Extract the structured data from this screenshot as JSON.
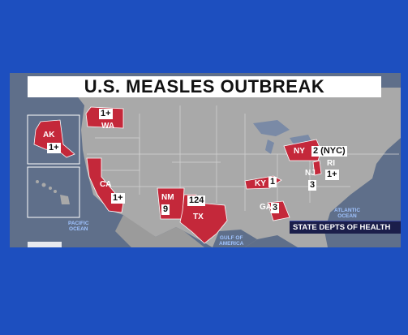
{
  "title": "U.S. MEASLES OUTBREAK",
  "source": "STATE DEPTS OF HEALTH",
  "colors": {
    "background": "#1d4fbf",
    "ocean": "#5f6f8a",
    "land": "#a9a9a9",
    "affected_state": "#c4283a",
    "label_box": "#ffffff",
    "source_bar": "#1b1e4a"
  },
  "states": [
    {
      "abbr": "AK",
      "count": "1+"
    },
    {
      "abbr": "WA",
      "count": "1+"
    },
    {
      "abbr": "CA",
      "count": "1+"
    },
    {
      "abbr": "NM",
      "count": "9"
    },
    {
      "abbr": "TX",
      "count": "124"
    },
    {
      "abbr": "KY",
      "count": "1"
    },
    {
      "abbr": "GA",
      "count": "3"
    },
    {
      "abbr": "NY",
      "count": "2 (NYC)"
    },
    {
      "abbr": "NJ",
      "count": "3"
    },
    {
      "abbr": "RI",
      "count": "1+"
    }
  ],
  "oceans": {
    "pacific": "PACIFIC\nOCEAN",
    "atlantic": "ATLANTIC\nOCEAN",
    "gulf": "GULF OF\nAMERICA"
  }
}
